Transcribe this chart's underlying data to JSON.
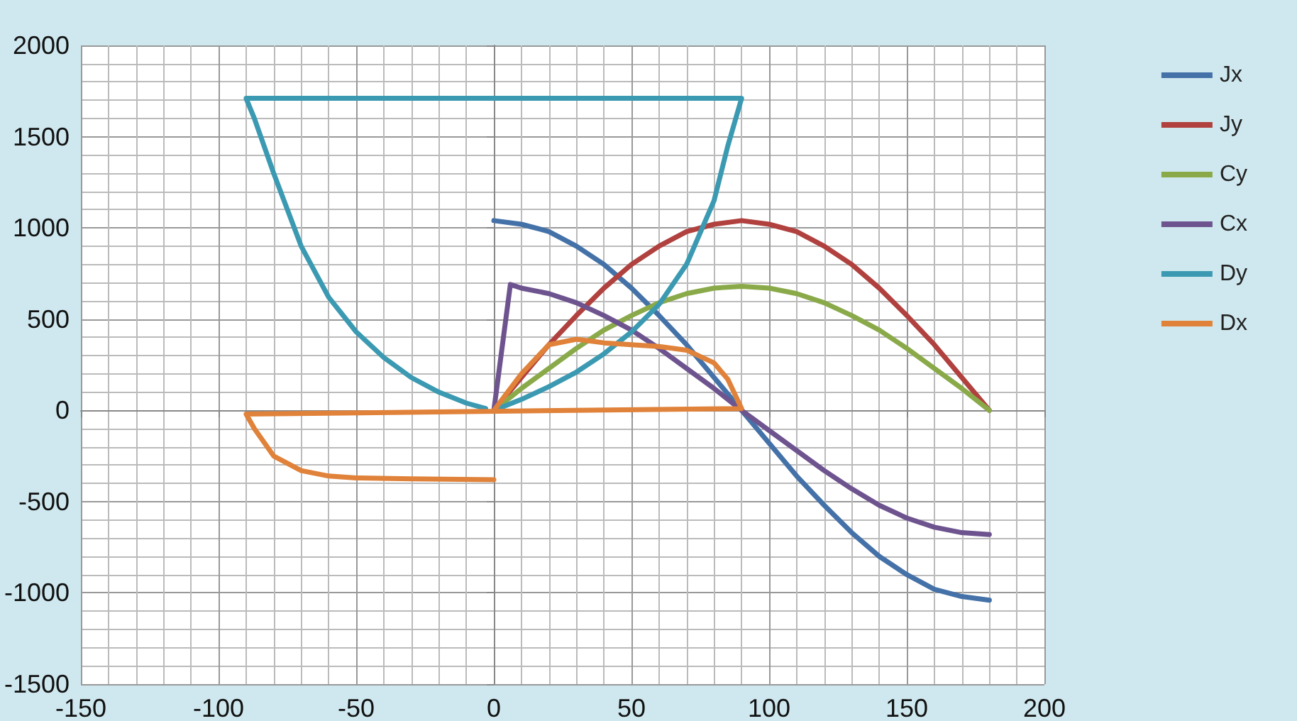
{
  "chart_data": {
    "type": "line",
    "xlim": [
      -150,
      200
    ],
    "xticks": [
      -150,
      -100,
      -50,
      0,
      50,
      100,
      150,
      200
    ],
    "ylim": [
      -1500,
      2000
    ],
    "yticks": [
      -1500,
      -1000,
      -500,
      0,
      500,
      1000,
      1500,
      2000
    ],
    "grid": true,
    "legend": "right",
    "marker": "none",
    "line_style": "solid",
    "series": [
      {
        "name": "Jx",
        "color": "#4472a8",
        "x": [
          0,
          10,
          20,
          30,
          40,
          50,
          60,
          70,
          80,
          90,
          100,
          110,
          120,
          130,
          140,
          150,
          160,
          170,
          180
        ],
        "values": [
          1040,
          1020,
          980,
          900,
          800,
          670,
          520,
          360,
          180,
          0,
          -180,
          -360,
          -520,
          -670,
          -800,
          -900,
          -980,
          -1020,
          -1040
        ]
      },
      {
        "name": "Jy",
        "color": "#b0413e",
        "x": [
          0,
          10,
          20,
          30,
          40,
          50,
          60,
          70,
          80,
          90,
          100,
          110,
          120,
          130,
          140,
          150,
          160,
          170,
          180
        ],
        "values": [
          0,
          180,
          360,
          520,
          670,
          800,
          900,
          980,
          1020,
          1040,
          1020,
          980,
          900,
          800,
          670,
          520,
          360,
          180,
          0
        ]
      },
      {
        "name": "Cy",
        "color": "#8aaa4a",
        "x": [
          0,
          10,
          20,
          30,
          40,
          50,
          60,
          70,
          80,
          90,
          100,
          110,
          120,
          130,
          140,
          150,
          160,
          170,
          180
        ],
        "values": [
          0,
          120,
          230,
          340,
          440,
          520,
          590,
          640,
          670,
          680,
          670,
          640,
          590,
          520,
          440,
          340,
          230,
          120,
          0
        ]
      },
      {
        "name": "Cx",
        "color": "#6e548f",
        "x": [
          0,
          6,
          10,
          20,
          30,
          40,
          50,
          60,
          70,
          80,
          90,
          100,
          110,
          120,
          130,
          140,
          150,
          160,
          170,
          180
        ],
        "values": [
          0,
          690,
          670,
          640,
          590,
          520,
          440,
          340,
          230,
          120,
          0,
          -110,
          -220,
          -330,
          -430,
          -520,
          -590,
          -640,
          -670,
          -680
        ]
      },
      {
        "name": "Dy",
        "color": "#3b9ab2",
        "x": [
          0,
          10,
          20,
          30,
          40,
          50,
          60,
          70,
          80,
          85,
          90,
          -90,
          -87,
          -80,
          -70,
          -60,
          -50,
          -40,
          -30,
          -20,
          -10,
          -3
        ],
        "values": [
          0,
          60,
          130,
          210,
          310,
          430,
          580,
          800,
          1150,
          1450,
          1710,
          1710,
          1600,
          1300,
          900,
          620,
          430,
          290,
          180,
          100,
          40,
          10
        ]
      },
      {
        "name": "Dx",
        "color": "#e0823a",
        "x": [
          0,
          10,
          20,
          30,
          40,
          50,
          60,
          70,
          80,
          85,
          90,
          -90,
          -87,
          -80,
          -70,
          -60,
          -50,
          -30,
          0
        ],
        "values": [
          0,
          200,
          360,
          390,
          370,
          360,
          350,
          330,
          260,
          170,
          10,
          -20,
          -100,
          -250,
          -330,
          -360,
          -370,
          -375,
          -380
        ]
      }
    ]
  }
}
